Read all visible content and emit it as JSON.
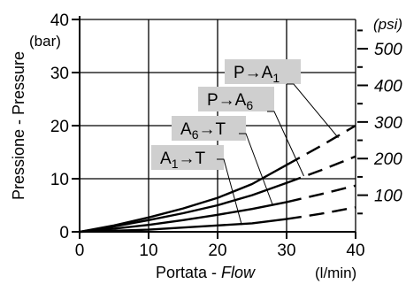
{
  "chart_data": {
    "type": "line",
    "xlabel_main": "Portata - ",
    "xlabel_italic": "Flow",
    "xunit": "(l/min)",
    "ylabel": "Pressione - Pressure",
    "ylabel_unit": "(bar)",
    "y2label_unit": "(psi)",
    "xlim": [
      0,
      40
    ],
    "ylim": [
      0,
      40
    ],
    "y2lim": [
      0,
      580
    ],
    "xticks": [
      0,
      10,
      20,
      30,
      40
    ],
    "yticks": [
      0,
      10,
      20,
      30,
      40
    ],
    "y2ticks": [
      100,
      200,
      300,
      400,
      500
    ],
    "y2_minor_step": 50,
    "grid": "major",
    "series": [
      {
        "name": "P→A1",
        "label_main": "P→A",
        "label_sub": "1",
        "solid": [
          [
            0,
            0
          ],
          [
            5,
            1.2
          ],
          [
            10,
            2.7
          ],
          [
            15,
            4.4
          ],
          [
            20,
            6.4
          ],
          [
            25,
            9.0
          ],
          [
            30,
            12.6
          ]
        ],
        "dashed": [
          [
            30,
            12.6
          ],
          [
            35,
            16.2
          ],
          [
            40,
            20.0
          ]
        ],
        "label_anchor": [
          37.5,
          17.7
        ]
      },
      {
        "name": "P→A6",
        "label_main": "P→A",
        "label_sub": "6",
        "solid": [
          [
            0,
            0
          ],
          [
            5,
            1.0
          ],
          [
            10,
            2.2
          ],
          [
            15,
            3.5
          ],
          [
            20,
            5.0
          ],
          [
            25,
            6.9
          ],
          [
            30,
            9.2
          ]
        ],
        "dashed": [
          [
            30,
            9.2
          ],
          [
            35,
            11.6
          ],
          [
            40,
            14.2
          ]
        ],
        "label_anchor": [
          32.5,
          10.5
        ]
      },
      {
        "name": "A6→T",
        "label_main": "A",
        "label_sub": "6",
        "label_tail": "→T",
        "solid": [
          [
            0,
            0
          ],
          [
            5,
            0.6
          ],
          [
            10,
            1.3
          ],
          [
            15,
            2.2
          ],
          [
            20,
            3.2
          ],
          [
            25,
            4.3
          ],
          [
            30,
            5.6
          ]
        ],
        "dashed": [
          [
            30,
            5.6
          ],
          [
            35,
            7.1
          ],
          [
            40,
            8.7
          ]
        ],
        "label_anchor": [
          28.0,
          5.0
        ]
      },
      {
        "name": "A1→T",
        "label_main": "A",
        "label_sub": "1",
        "label_tail": "→T",
        "solid": [
          [
            0,
            0
          ],
          [
            5,
            0.2
          ],
          [
            10,
            0.4
          ],
          [
            15,
            0.8
          ],
          [
            20,
            1.2
          ],
          [
            25,
            1.6
          ],
          [
            30,
            2.4
          ]
        ],
        "dashed": [
          [
            30,
            2.4
          ],
          [
            35,
            3.4
          ],
          [
            40,
            4.6
          ]
        ],
        "label_anchor": [
          23.5,
          1.3
        ]
      }
    ]
  }
}
